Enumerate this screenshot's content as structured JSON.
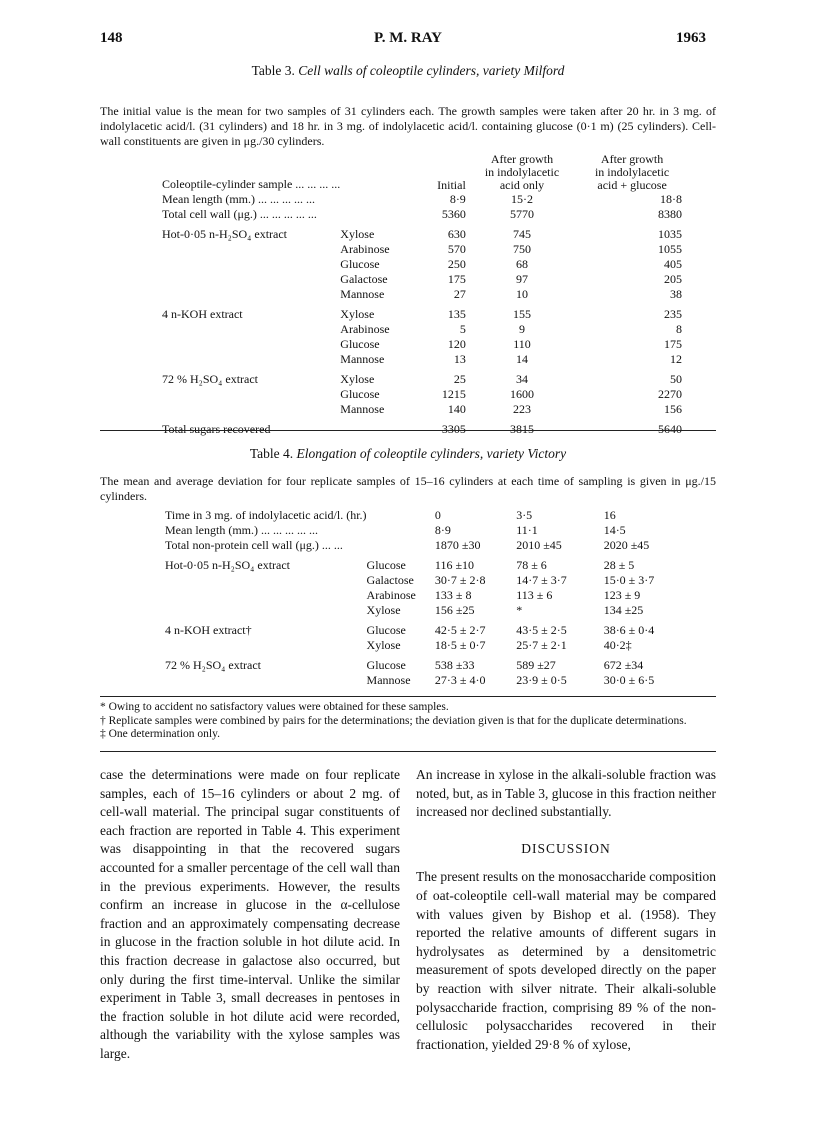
{
  "header": {
    "page": "148",
    "author": "P. M. RAY",
    "year": "1963"
  },
  "table3": {
    "title_prefix": "Table 3.",
    "title": "Cell walls of coleoptile cylinders, variety Milford",
    "caption": "The initial value is the mean for two samples of 31 cylinders each. The growth samples were taken after 20 hr. in 3 mg. of indolylacetic acid/l. (31 cylinders) and 18 hr. in 3 mg. of indolylacetic acid/l. containing glucose (0·1 m) (25 cylinders). Cell-wall constituents are given in μg./30 cylinders.",
    "columns": [
      "Initial",
      "After growth in indolylacetic acid only",
      "After growth in indolylacetic acid + glucose"
    ],
    "rows": [
      {
        "label": "Coleoptile-cylinder sample ... ... ... ...",
        "sugar": "",
        "values": [
          "Initial",
          "After growth\nin indolylacetic\nacid only",
          "After growth\nin indolylacetic\nacid + glucose"
        ],
        "header": true
      },
      {
        "label": "Mean length (mm.) ... ... ... ... ...",
        "sugar": "",
        "values": [
          "8·9",
          "15·2",
          "18·8"
        ]
      },
      {
        "label": "Total cell wall (μg.) ... ... ... ... ...",
        "sugar": "",
        "values": [
          "5360",
          "5770",
          "8380"
        ]
      },
      {
        "label": "Hot-0·05 n-H₂SO₄ extract",
        "sugar": "Xylose",
        "values": [
          "630",
          "745",
          "1035"
        ],
        "gap": true
      },
      {
        "label": "",
        "sugar": "Arabinose",
        "values": [
          "570",
          "750",
          "1055"
        ]
      },
      {
        "label": "",
        "sugar": "Glucose",
        "values": [
          "250",
          "68",
          "405"
        ]
      },
      {
        "label": "",
        "sugar": "Galactose",
        "values": [
          "175",
          "97",
          "205"
        ]
      },
      {
        "label": "",
        "sugar": "Mannose",
        "values": [
          "27",
          "10",
          "38"
        ]
      },
      {
        "label": "4 n-KOH extract",
        "sugar": "Xylose",
        "values": [
          "135",
          "155",
          "235"
        ],
        "gap": true
      },
      {
        "label": "",
        "sugar": "Arabinose",
        "values": [
          "5",
          "9",
          "8"
        ]
      },
      {
        "label": "",
        "sugar": "Glucose",
        "values": [
          "120",
          "110",
          "175"
        ]
      },
      {
        "label": "",
        "sugar": "Mannose",
        "values": [
          "13",
          "14",
          "12"
        ]
      },
      {
        "label": "72 % H₂SO₄ extract",
        "sugar": "Xylose",
        "values": [
          "25",
          "34",
          "50"
        ],
        "gap": true
      },
      {
        "label": "",
        "sugar": "Glucose",
        "values": [
          "1215",
          "1600",
          "2270"
        ]
      },
      {
        "label": "",
        "sugar": "Mannose",
        "values": [
          "140",
          "223",
          "156"
        ]
      },
      {
        "label": "Total sugars recovered",
        "sugar": "",
        "values": [
          "3305",
          "3815",
          "5640"
        ],
        "gap": true
      }
    ]
  },
  "table4": {
    "title_prefix": "Table 4.",
    "title": "Elongation of coleoptile cylinders, variety Victory",
    "caption": "The mean and average deviation for four replicate samples of 15–16 cylinders at each time of sampling is given in μg./15 cylinders.",
    "rows": [
      {
        "label": "Time in 3 mg. of indolylacetic acid/l. (hr.)",
        "sugar": "",
        "values": [
          "0",
          "3·5",
          "16"
        ]
      },
      {
        "label": "Mean length (mm.) ... ... ... ... ...",
        "sugar": "",
        "values": [
          "8·9",
          "11·1",
          "14·5"
        ]
      },
      {
        "label": "Total non-protein cell wall (μg.) ... ...",
        "sugar": "",
        "values": [
          "1870 ±30",
          "2010 ±45",
          "2020 ±45"
        ]
      },
      {
        "label": "Hot-0·05 n-H₂SO₄ extract",
        "sugar": "Glucose",
        "values": [
          "116 ±10",
          "78 ± 6",
          "28 ± 5"
        ],
        "gap": true
      },
      {
        "label": "",
        "sugar": "Galactose",
        "values": [
          "30·7 ± 2·8",
          "14·7 ± 3·7",
          "15·0 ± 3·7"
        ]
      },
      {
        "label": "",
        "sugar": "Arabinose",
        "values": [
          "133 ± 8",
          "113 ± 6",
          "123 ± 9"
        ]
      },
      {
        "label": "",
        "sugar": "Xylose",
        "values": [
          "156 ±25",
          "*",
          "134 ±25"
        ]
      },
      {
        "label": "4 n-KOH extract†",
        "sugar": "Glucose",
        "values": [
          "42·5 ± 2·7",
          "43·5 ± 2·5",
          "38·6 ± 0·4"
        ],
        "gap": true
      },
      {
        "label": "",
        "sugar": "Xylose",
        "values": [
          "18·5 ± 0·7",
          "25·7 ± 2·1",
          "40·2‡"
        ]
      },
      {
        "label": "72 % H₂SO₄ extract",
        "sugar": "Glucose",
        "values": [
          "538 ±33",
          "589 ±27",
          "672 ±34"
        ],
        "gap": true
      },
      {
        "label": "",
        "sugar": "Mannose",
        "values": [
          "27·3 ± 4·0",
          "23·9 ± 0·5",
          "30·0 ± 6·5"
        ]
      }
    ],
    "footnotes": [
      "* Owing to accident no satisfactory values were obtained for these samples.",
      "† Replicate samples were combined by pairs for the determinations; the deviation given is that for the duplicate determinations.",
      "‡ One determination only."
    ]
  },
  "body": {
    "left": "case the determinations were made on four replicate samples, each of 15–16 cylinders or about 2 mg. of cell-wall material. The principal sugar constituents of each fraction are reported in Table 4. This experiment was disappointing in that the recovered sugars accounted for a smaller percentage of the cell wall than in the previous experiments. However, the results confirm an increase in glucose in the α-cellulose fraction and an approximately compensating decrease in glucose in the fraction soluble in hot dilute acid. In this fraction decrease in galactose also occurred, but only during the first time-interval. Unlike the similar experiment in Table 3, small decreases in pentoses in the fraction soluble in hot dilute acid were recorded, although the variability with the xylose samples was large.",
    "right_p1": "An increase in xylose in the alkali-soluble fraction was noted, but, as in Table 3, glucose in this fraction neither increased nor declined substantially.",
    "heading": "DISCUSSION",
    "right_p2": "The present results on the monosaccharide composition of oat-coleoptile cell-wall material may be compared with values given by Bishop et al. (1958). They reported the relative amounts of different sugars in hydrolysates as determined by a densitometric measurement of spots developed directly on the paper by reaction with silver nitrate. Their alkali-soluble polysaccharide fraction, comprising 89 % of the non-cellulosic polysaccharides recovered in their fractionation, yielded 29·8 % of xylose,"
  }
}
